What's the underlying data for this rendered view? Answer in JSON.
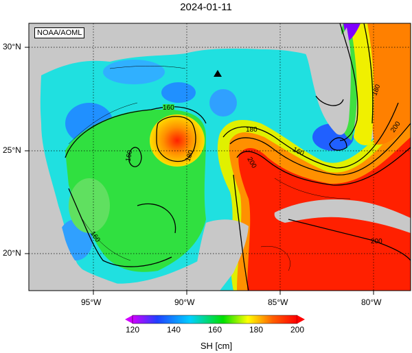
{
  "title": "2024-01-11",
  "credit": "NOAA/AOML",
  "lat_labels": [
    "30°N",
    "25°N",
    "20°N"
  ],
  "lon_labels": [
    "95°W",
    "90°W",
    "85°W",
    "80°W"
  ],
  "contour_labels": [
    "160",
    "160",
    "180",
    "180",
    "160",
    "180",
    "160",
    "200",
    "160",
    "180",
    "200",
    "200"
  ],
  "colorbar": {
    "label": "SH [cm]",
    "ticks": [
      "120",
      "140",
      "160",
      "180",
      "200"
    ],
    "colors": [
      "#d000ff",
      "#2040ff",
      "#00d0ff",
      "#00e000",
      "#ffff00",
      "#ff6000",
      "#ff0000"
    ]
  },
  "marker": "triangle"
}
